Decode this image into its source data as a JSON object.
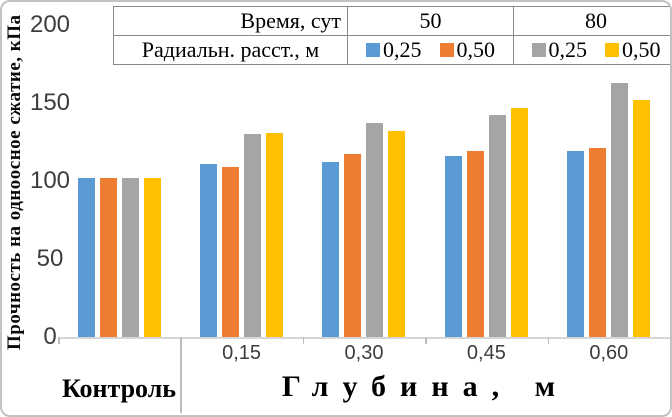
{
  "legend_table": {
    "time_label": "Время, сут",
    "radial_label": "Радиальн. расст., м",
    "groups": [
      {
        "time": "50",
        "entries": [
          {
            "label": "0,25"
          },
          {
            "label": "0,50"
          }
        ]
      },
      {
        "time": "80",
        "entries": [
          {
            "label": "0,25"
          },
          {
            "label": "0,50"
          }
        ]
      }
    ]
  },
  "x_axis": {
    "control_label": "Контроль",
    "group_label": "Глубина, м",
    "tick_labels": [
      "0,15",
      "0,30",
      "0,45",
      "0,60"
    ]
  },
  "chart_data": {
    "type": "bar",
    "title": "",
    "xlabel": "Глубина, м",
    "ylabel": "Прочность на одноосное сжатие, кПа",
    "ylim": [
      0,
      200
    ],
    "yticks": [
      0,
      50,
      100,
      150,
      200
    ],
    "grid": false,
    "legend_position": "top-table",
    "categories": [
      "Контроль",
      "0,15",
      "0,30",
      "0,45",
      "0,60"
    ],
    "series": [
      {
        "name": "Время 50 сут, расст. 0,25 м",
        "color": "#5B9BD5",
        "values": [
          102,
          111,
          112,
          116,
          119
        ]
      },
      {
        "name": "Время 50 сут, расст. 0,50 м",
        "color": "#ED7D31",
        "values": [
          102,
          109,
          117,
          119,
          121
        ]
      },
      {
        "name": "Время 80 сут, расст. 0,25 м",
        "color": "#A5A5A5",
        "values": [
          102,
          130,
          137,
          142,
          163
        ]
      },
      {
        "name": "Время 80 сут, расст. 0,50 м",
        "color": "#FFC000",
        "values": [
          102,
          131,
          132,
          147,
          152
        ]
      }
    ]
  }
}
